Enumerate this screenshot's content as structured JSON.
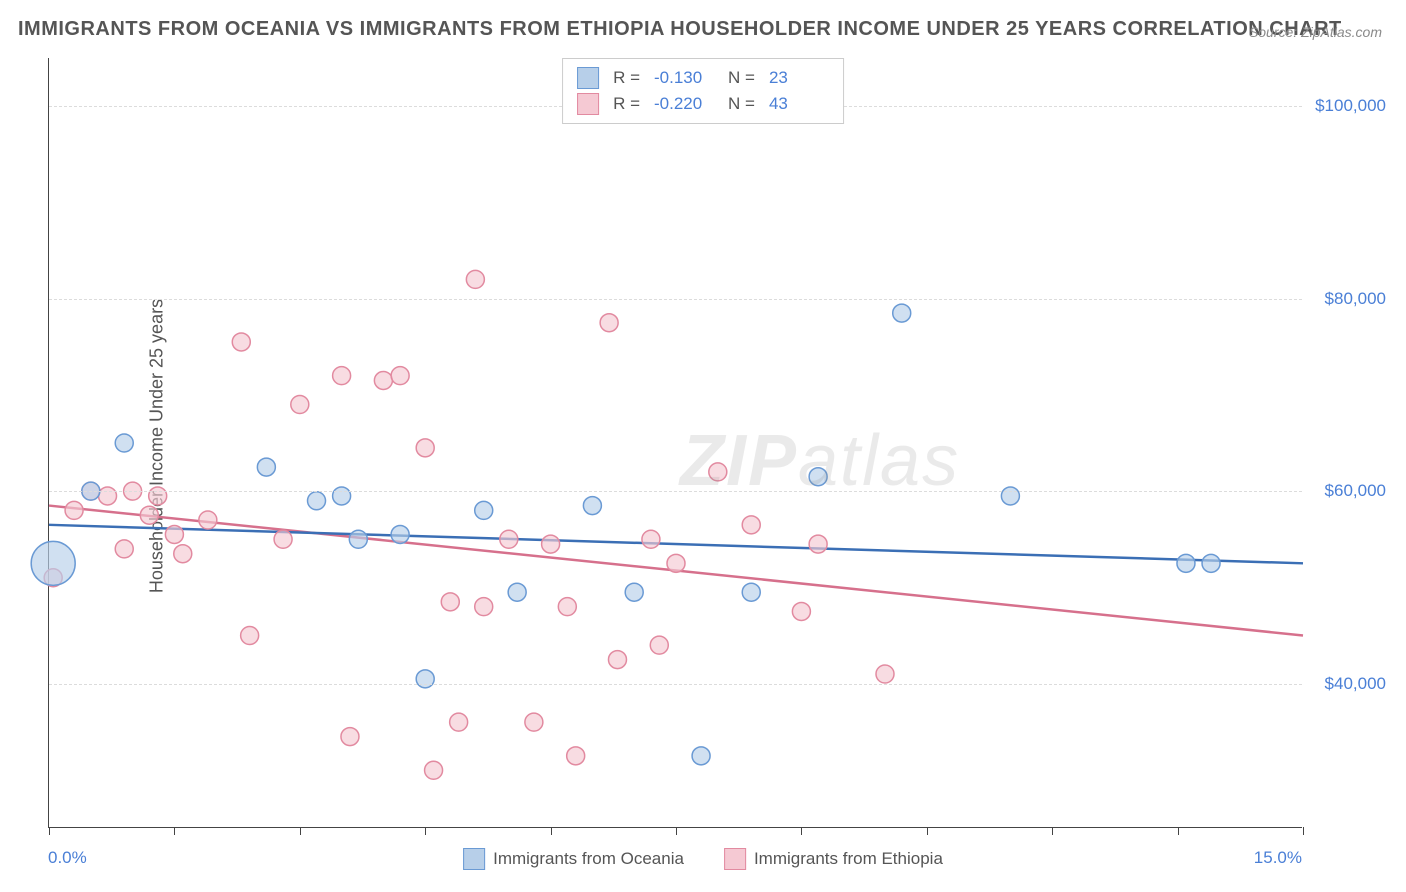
{
  "title": "IMMIGRANTS FROM OCEANIA VS IMMIGRANTS FROM ETHIOPIA HOUSEHOLDER INCOME UNDER 25 YEARS CORRELATION CHART",
  "source": "Source: ZipAtlas.com",
  "watermark": "ZIPatlas",
  "chart": {
    "type": "scatter",
    "ylabel": "Householder Income Under 25 years",
    "xlim": [
      0,
      15
    ],
    "ylim": [
      25000,
      105000
    ],
    "x_ticks": [
      0,
      1.5,
      3,
      4.5,
      6,
      7.5,
      9,
      10.5,
      12,
      13.5,
      15
    ],
    "x_tick_labels": {
      "0": "0.0%",
      "15": "15.0%"
    },
    "y_gridlines": [
      40000,
      60000,
      80000,
      100000
    ],
    "y_tick_labels": [
      "$40,000",
      "$60,000",
      "$80,000",
      "$100,000"
    ],
    "background_color": "#ffffff",
    "grid_color": "#dcdcdc",
    "axis_color": "#444444",
    "tick_label_color": "#4a7fd6",
    "text_color": "#555555",
    "marker_radius": 9,
    "marker_stroke_width": 1.5,
    "trend_line_width": 2.5,
    "series": [
      {
        "name": "Immigrants from Oceania",
        "fill_color": "#b7cfe9",
        "stroke_color": "#6a9ad4",
        "line_color": "#3b6fb5",
        "R": "-0.130",
        "N": "23",
        "trend": {
          "y_at_xmin": 56500,
          "y_at_xmax": 52500
        },
        "points": [
          {
            "x": 0.05,
            "y": 52500,
            "r": 22
          },
          {
            "x": 0.9,
            "y": 65000
          },
          {
            "x": 0.5,
            "y": 60000
          },
          {
            "x": 2.6,
            "y": 62500
          },
          {
            "x": 3.2,
            "y": 59000
          },
          {
            "x": 3.5,
            "y": 59500
          },
          {
            "x": 3.7,
            "y": 55000
          },
          {
            "x": 4.2,
            "y": 55500
          },
          {
            "x": 4.5,
            "y": 40500
          },
          {
            "x": 5.2,
            "y": 58000
          },
          {
            "x": 5.6,
            "y": 49500
          },
          {
            "x": 6.5,
            "y": 58500
          },
          {
            "x": 7.0,
            "y": 49500
          },
          {
            "x": 7.8,
            "y": 32500
          },
          {
            "x": 8.4,
            "y": 49500
          },
          {
            "x": 9.2,
            "y": 61500
          },
          {
            "x": 10.2,
            "y": 78500
          },
          {
            "x": 11.5,
            "y": 59500
          },
          {
            "x": 13.6,
            "y": 52500
          },
          {
            "x": 13.9,
            "y": 52500
          }
        ]
      },
      {
        "name": "Immigrants from Ethiopia",
        "fill_color": "#f5c9d3",
        "stroke_color": "#e28aa0",
        "line_color": "#d6708c",
        "R": "-0.220",
        "N": "43",
        "trend": {
          "y_at_xmin": 58500,
          "y_at_xmax": 45000
        },
        "points": [
          {
            "x": 0.05,
            "y": 51000
          },
          {
            "x": 0.3,
            "y": 58000
          },
          {
            "x": 0.5,
            "y": 60000
          },
          {
            "x": 0.7,
            "y": 59500
          },
          {
            "x": 0.9,
            "y": 54000
          },
          {
            "x": 1.0,
            "y": 60000
          },
          {
            "x": 1.2,
            "y": 57500
          },
          {
            "x": 1.3,
            "y": 59500
          },
          {
            "x": 1.5,
            "y": 55500
          },
          {
            "x": 1.6,
            "y": 53500
          },
          {
            "x": 1.9,
            "y": 57000
          },
          {
            "x": 2.3,
            "y": 75500
          },
          {
            "x": 2.4,
            "y": 45000
          },
          {
            "x": 2.8,
            "y": 55000
          },
          {
            "x": 3.0,
            "y": 69000
          },
          {
            "x": 3.5,
            "y": 72000
          },
          {
            "x": 3.6,
            "y": 34500
          },
          {
            "x": 4.0,
            "y": 71500
          },
          {
            "x": 4.2,
            "y": 72000
          },
          {
            "x": 4.5,
            "y": 64500
          },
          {
            "x": 4.6,
            "y": 31000
          },
          {
            "x": 4.8,
            "y": 48500
          },
          {
            "x": 4.9,
            "y": 36000
          },
          {
            "x": 5.1,
            "y": 82000
          },
          {
            "x": 5.2,
            "y": 48000
          },
          {
            "x": 5.5,
            "y": 55000
          },
          {
            "x": 5.8,
            "y": 36000
          },
          {
            "x": 6.0,
            "y": 54500
          },
          {
            "x": 6.2,
            "y": 48000
          },
          {
            "x": 6.3,
            "y": 32500
          },
          {
            "x": 6.7,
            "y": 77500
          },
          {
            "x": 6.8,
            "y": 42500
          },
          {
            "x": 7.2,
            "y": 55000
          },
          {
            "x": 7.3,
            "y": 44000
          },
          {
            "x": 7.5,
            "y": 52500
          },
          {
            "x": 8.0,
            "y": 62000
          },
          {
            "x": 8.4,
            "y": 56500
          },
          {
            "x": 9.0,
            "y": 47500
          },
          {
            "x": 9.2,
            "y": 54500
          },
          {
            "x": 10.0,
            "y": 41000
          }
        ]
      }
    ]
  },
  "legend_top": {
    "rows": [
      {
        "swatch_fill": "#b7cfe9",
        "swatch_stroke": "#6a9ad4",
        "r_label": "R =",
        "r_value": "-0.130",
        "n_label": "N =",
        "n_value": "23"
      },
      {
        "swatch_fill": "#f5c9d3",
        "swatch_stroke": "#e28aa0",
        "r_label": "R =",
        "r_value": "-0.220",
        "n_label": "N =",
        "n_value": "43"
      }
    ]
  },
  "legend_bottom": {
    "items": [
      {
        "swatch_fill": "#b7cfe9",
        "swatch_stroke": "#6a9ad4",
        "label": "Immigrants from Oceania"
      },
      {
        "swatch_fill": "#f5c9d3",
        "swatch_stroke": "#e28aa0",
        "label": "Immigrants from Ethiopia"
      }
    ]
  }
}
